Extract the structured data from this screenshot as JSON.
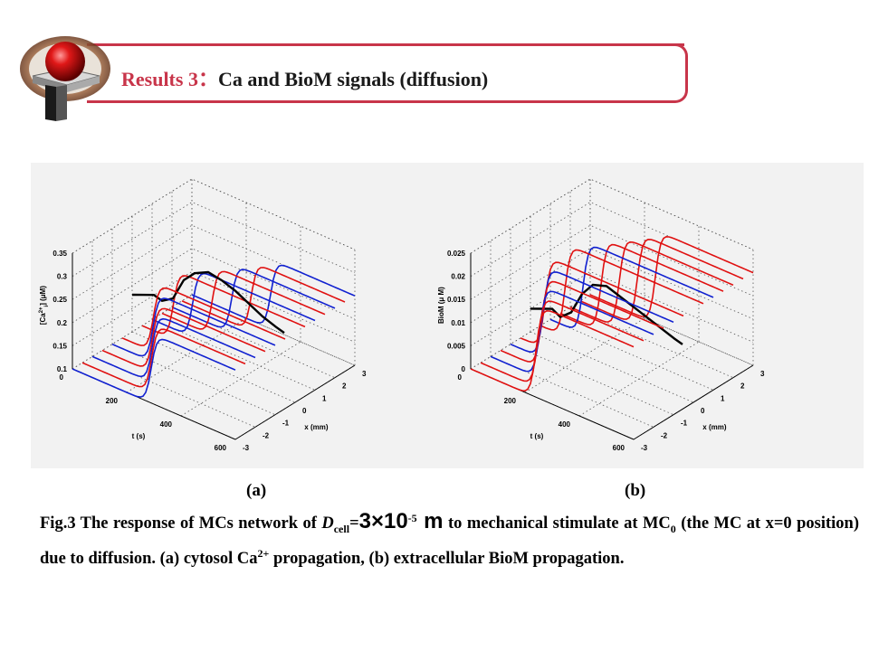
{
  "header": {
    "title_prefix": "Results 3",
    "title_separator": "：",
    "title_rest": "Ca and BioM signals (diffusion)"
  },
  "colors": {
    "accent": "#c8354a",
    "series_red": "#e01010",
    "series_blue": "#1020d0",
    "series_black": "#000000"
  },
  "logo": {
    "icon": "red-sphere-on-pedestal-icon"
  },
  "chart_data": [
    {
      "type": "line",
      "projection": "3d",
      "panel_label": "(a)",
      "x_axis": {
        "label": "x (mm)",
        "ticks": [
          -3,
          -2,
          -1,
          0,
          1,
          2,
          3
        ],
        "range": [
          -3,
          3
        ]
      },
      "t_axis": {
        "label": "t (s)",
        "ticks": [
          0,
          200,
          400,
          600
        ],
        "range": [
          0,
          600
        ]
      },
      "z_axis": {
        "label_main": "[Ca",
        "label_sup": "2+",
        "label_sub": "i",
        "label_end": "] (μM)",
        "ticks": [
          "0.1",
          "0.15",
          "0.2",
          "0.25",
          "0.3",
          "0.35"
        ],
        "range": [
          0.1,
          0.35
        ]
      },
      "grid": true,
      "traces": {
        "x_positions": [
          -3,
          -2.5,
          -2,
          -1.5,
          -1,
          -0.5,
          0,
          0.5,
          1,
          1.5,
          2,
          2.5,
          3
        ],
        "colors": [
          "blue",
          "red",
          "blue",
          "red",
          "blue",
          "red",
          "black",
          "red",
          "blue",
          "red",
          "blue",
          "red",
          "blue"
        ],
        "baseline": 0.1,
        "peak": 0.25,
        "onset_t_at_x0": 80,
        "onset_delay_per_mm": 35,
        "center_trace": {
          "t": [
            0,
            40,
            80,
            110,
            150,
            190,
            230,
            280,
            330,
            380,
            430,
            480,
            530,
            560
          ],
          "values": [
            0.18,
            0.19,
            0.2,
            0.195,
            0.21,
            0.26,
            0.285,
            0.3,
            0.295,
            0.285,
            0.27,
            0.255,
            0.245,
            0.24
          ]
        }
      }
    },
    {
      "type": "line",
      "projection": "3d",
      "panel_label": "(b)",
      "x_axis": {
        "label": "x (mm)",
        "ticks": [
          -3,
          -2,
          -1,
          0,
          1,
          2,
          3
        ],
        "range": [
          -3,
          3
        ]
      },
      "t_axis": {
        "label": "t (s)",
        "ticks": [
          0,
          200,
          400,
          600
        ],
        "range": [
          0,
          600
        ]
      },
      "z_axis": {
        "label_main": "BioM (μ M)",
        "ticks": [
          "0",
          "0.005",
          "0.01",
          "0.015",
          "0.02",
          "0.025"
        ],
        "range": [
          0,
          0.025
        ]
      },
      "grid": true,
      "traces": {
        "x_positions": [
          -3,
          -2.5,
          -2,
          -1.5,
          -1,
          -0.5,
          0,
          0.5,
          1,
          1.5,
          2,
          2.5,
          3
        ],
        "colors": [
          "red",
          "red",
          "blue",
          "red",
          "blue",
          "red",
          "black",
          "red",
          "blue",
          "red",
          "red",
          "red",
          "red"
        ],
        "baseline": 0,
        "peak": 0.02,
        "onset_t_at_x0": 60,
        "onset_delay_per_mm": 30,
        "center_trace": {
          "t": [
            0,
            40,
            80,
            110,
            150,
            190,
            230,
            280,
            330,
            380,
            430,
            480,
            530,
            560
          ],
          "values": [
            0.005,
            0.006,
            0.007,
            0.006,
            0.008,
            0.013,
            0.016,
            0.017,
            0.016,
            0.015,
            0.014,
            0.013,
            0.012,
            0.0115
          ]
        }
      }
    }
  ],
  "captions": {
    "a": "(a)",
    "b": "(b)",
    "fig_label": "Fig.3 The response of MCs network of ",
    "d_symbol": "D",
    "d_sub": "cell",
    "equals": "=",
    "coef": "3×10",
    "exp": "-5",
    "unit": " m",
    "mid": " to mechanical stimulate at MC",
    "mc_sub": "0",
    "part2": " (the MC at x=0 position) due to diffusion. (a) cytosol Ca",
    "ca_sup": "2+",
    "part3": " propagation, (b) extracellular BioM propagation."
  }
}
